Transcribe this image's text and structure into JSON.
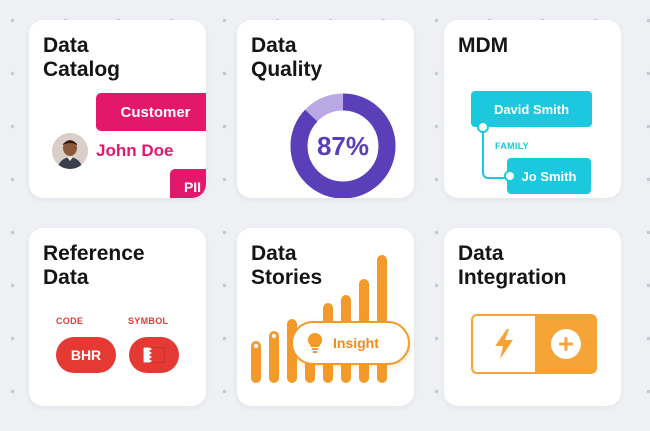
{
  "cards": {
    "catalog": {
      "title_line1": "Data",
      "title_line2": "Catalog",
      "tag": "Customer",
      "person_name": "John Doe",
      "badge": "PII",
      "accent": "#e4186b"
    },
    "quality": {
      "title_line1": "Data",
      "title_line2": "Quality",
      "score": "87%",
      "score_value": 87,
      "ring_color": "#5a3fb8",
      "track_color": "#b9a8e3"
    },
    "mdm": {
      "title": "MDM",
      "record_1": "David Smith",
      "relation": "FAMILY",
      "record_2": "Jo Smith",
      "accent": "#1cc8dd"
    },
    "reference": {
      "title_line1": "Reference",
      "title_line2": "Data",
      "code_label": "CODE",
      "symbol_label": "SYMBOL",
      "code_value": "BHR",
      "symbol_icon": "bahrain-flag-icon",
      "accent": "#e53a33"
    },
    "stories": {
      "title_line1": "Data",
      "title_line2": "Stories",
      "insight_label": "Insight",
      "insight_icon": "lightbulb-icon",
      "accent": "#f39a2b"
    },
    "integration": {
      "title_line1": "Data",
      "title_line2": "Integration",
      "left_icon": "lightning-icon",
      "right_icon": "plus-icon",
      "accent": "#f6a436"
    }
  }
}
